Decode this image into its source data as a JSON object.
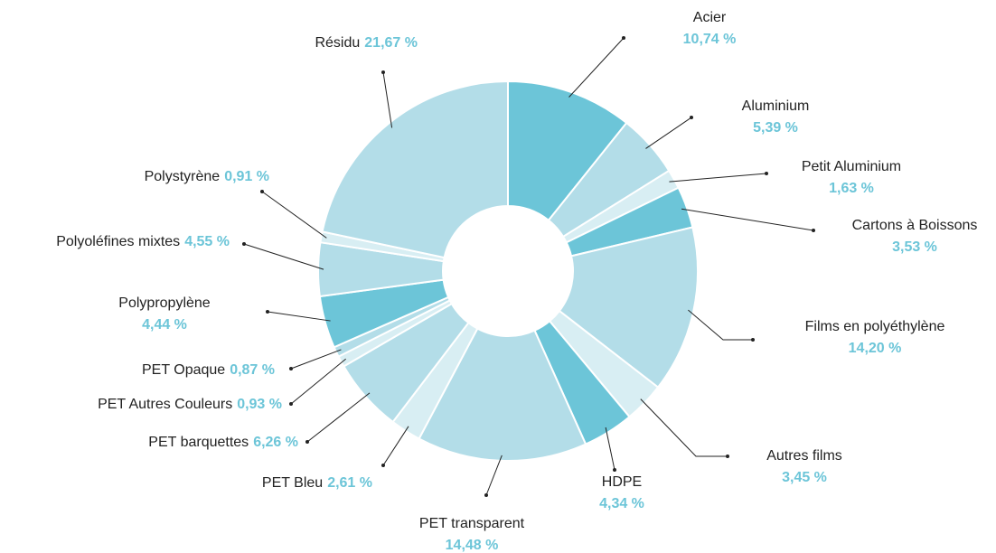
{
  "chart_data": {
    "type": "pie",
    "donut": true,
    "categories": [
      "Acier",
      "Aluminium",
      "Petit Aluminium",
      "Cartons à Boissons",
      "Films en polyéthylène",
      "Autres films",
      "HDPE",
      "PET transparent",
      "PET Bleu",
      "PET barquettes",
      "PET Autres Couleurs",
      "PET Opaque",
      "Polypropylène",
      "Polyoléfines mixtes",
      "Polystyrène",
      "Résidu"
    ],
    "values": [
      10.74,
      5.39,
      1.63,
      3.53,
      14.2,
      3.45,
      4.34,
      14.48,
      2.61,
      6.26,
      0.93,
      0.87,
      4.44,
      4.55,
      0.91,
      21.67
    ],
    "value_labels": [
      "10,74 %",
      "5,39 %",
      "1,63 %",
      "3,53 %",
      "14,20 %",
      "3,45 %",
      "4,34 %",
      "14,48 %",
      "2,61 %",
      "6,26 %",
      "0,93 %",
      "0,87 %",
      "4,44 %",
      "4,55 %",
      "0,91 %",
      "21,67 %"
    ],
    "colors": [
      "#6cc5d8",
      "#b3dde8",
      "#d8eef3",
      "#6cc5d8",
      "#b3dde8",
      "#d8eef3",
      "#6cc5d8",
      "#b3dde8",
      "#d8eef3",
      "#b3dde8",
      "#d8eef3",
      "#b3dde8",
      "#6cc5d8",
      "#b3dde8",
      "#d8eef3",
      "#b3dde8"
    ]
  }
}
